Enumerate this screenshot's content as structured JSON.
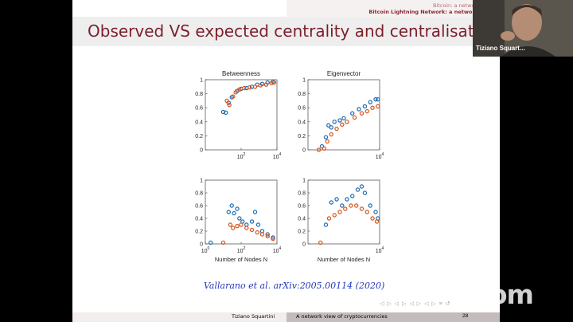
{
  "slide": {
    "nav": {
      "section": "Bitcoin: a network view",
      "subsection": "Bitcoin Lightning Network: a network view"
    },
    "title": "Observed VS expected centrality and centralisation",
    "citation": "Vallarano et al. arXiv:2005.00114 (2020)",
    "footer": {
      "author": "Tiziano Squartini",
      "talk_title": "A network view of cryptocurrencies",
      "page": "28"
    },
    "nav_icons": "◁ ▷ ◁ ▷ ◁ ▷ ◁ ▷ ≡ ↺"
  },
  "video": {
    "participant_name": "Tiziano Squart...",
    "logo_text": "zoom"
  },
  "colors": {
    "observed": "#1f6bb0",
    "expected": "#d95319",
    "title": "#7d1f2a",
    "citation": "#2036b8"
  },
  "chart_data": [
    {
      "type": "scatter",
      "title": "Betweenness",
      "xlabel": "",
      "xscale": "log",
      "xlim": [
        1,
        10000
      ],
      "ylim": [
        0,
        1
      ],
      "yticks": [
        "0",
        "0.2",
        "0.4",
        "0.6",
        "0.8",
        "1"
      ],
      "xticks": [
        "10^2",
        "10^4"
      ],
      "series": [
        {
          "color": "blue",
          "points": [
            [
              10,
              0.54
            ],
            [
              14,
              0.53
            ],
            [
              20,
              0.67
            ],
            [
              30,
              0.75
            ],
            [
              60,
              0.84
            ],
            [
              100,
              0.87
            ],
            [
              200,
              0.88
            ],
            [
              400,
              0.9
            ],
            [
              800,
              0.93
            ],
            [
              1500,
              0.94
            ],
            [
              3000,
              0.96
            ],
            [
              6000,
              0.97
            ]
          ]
        },
        {
          "color": "orange",
          "points": [
            [
              16,
              0.7
            ],
            [
              22,
              0.64
            ],
            [
              35,
              0.76
            ],
            [
              50,
              0.82
            ],
            [
              80,
              0.86
            ],
            [
              150,
              0.88
            ],
            [
              300,
              0.89
            ],
            [
              600,
              0.9
            ],
            [
              1200,
              0.92
            ],
            [
              2500,
              0.93
            ],
            [
              5000,
              0.95
            ],
            [
              7000,
              0.96
            ]
          ]
        }
      ]
    },
    {
      "type": "scatter",
      "title": "Eigenvector",
      "xlabel": "",
      "xscale": "log",
      "xlim": [
        1,
        10000
      ],
      "ylim": [
        0,
        1
      ],
      "yticks": [
        "0",
        "0.2",
        "0.4",
        "0.6",
        "0.8",
        "1"
      ],
      "xticks": [
        "10^4"
      ],
      "series": [
        {
          "color": "blue",
          "points": [
            [
              6,
              0.05
            ],
            [
              10,
              0.18
            ],
            [
              14,
              0.35
            ],
            [
              20,
              0.32
            ],
            [
              30,
              0.4
            ],
            [
              60,
              0.42
            ],
            [
              100,
              0.45
            ],
            [
              300,
              0.52
            ],
            [
              700,
              0.58
            ],
            [
              1500,
              0.62
            ],
            [
              3000,
              0.68
            ],
            [
              6000,
              0.72
            ],
            [
              8000,
              0.72
            ]
          ]
        },
        {
          "color": "orange",
          "points": [
            [
              4,
              0.0
            ],
            [
              8,
              0.02
            ],
            [
              12,
              0.12
            ],
            [
              20,
              0.22
            ],
            [
              40,
              0.3
            ],
            [
              80,
              0.36
            ],
            [
              150,
              0.4
            ],
            [
              400,
              0.46
            ],
            [
              1000,
              0.52
            ],
            [
              2000,
              0.55
            ],
            [
              4000,
              0.6
            ],
            [
              8000,
              0.62
            ]
          ]
        }
      ]
    },
    {
      "type": "scatter",
      "title": "",
      "xlabel": "Number of Nodes N",
      "xscale": "log",
      "xlim": [
        1,
        10000
      ],
      "ylim": [
        0,
        1
      ],
      "yticks": [
        "0",
        "0.2",
        "0.4",
        "0.6",
        "0.8",
        "1"
      ],
      "xticks": [
        "10^0",
        "10^2",
        "10^4"
      ],
      "series": [
        {
          "color": "blue",
          "points": [
            [
              2,
              0.02
            ],
            [
              20,
              0.5
            ],
            [
              30,
              0.6
            ],
            [
              40,
              0.48
            ],
            [
              60,
              0.55
            ],
            [
              80,
              0.4
            ],
            [
              120,
              0.35
            ],
            [
              200,
              0.3
            ],
            [
              400,
              0.35
            ],
            [
              600,
              0.5
            ],
            [
              900,
              0.3
            ],
            [
              1500,
              0.2
            ],
            [
              3000,
              0.15
            ],
            [
              6000,
              0.1
            ]
          ]
        },
        {
          "color": "orange",
          "points": [
            [
              10,
              0.02
            ],
            [
              25,
              0.3
            ],
            [
              35,
              0.25
            ],
            [
              60,
              0.28
            ],
            [
              100,
              0.3
            ],
            [
              200,
              0.25
            ],
            [
              400,
              0.22
            ],
            [
              800,
              0.18
            ],
            [
              1500,
              0.15
            ],
            [
              3000,
              0.12
            ],
            [
              6000,
              0.08
            ]
          ]
        }
      ]
    },
    {
      "type": "scatter",
      "title": "",
      "xlabel": "Number of Nodes N",
      "xscale": "log",
      "xlim": [
        1,
        10000
      ],
      "ylim": [
        0,
        1
      ],
      "yticks": [
        "0",
        "0.2",
        "0.4",
        "0.6",
        "0.8",
        "1"
      ],
      "xticks": [
        "10^4"
      ],
      "series": [
        {
          "color": "blue",
          "points": [
            [
              10,
              0.3
            ],
            [
              20,
              0.65
            ],
            [
              40,
              0.7
            ],
            [
              80,
              0.6
            ],
            [
              150,
              0.7
            ],
            [
              300,
              0.75
            ],
            [
              600,
              0.85
            ],
            [
              1000,
              0.9
            ],
            [
              1500,
              0.8
            ],
            [
              3000,
              0.6
            ],
            [
              6000,
              0.5
            ],
            [
              8000,
              0.4
            ]
          ]
        },
        {
          "color": "orange",
          "points": [
            [
              5,
              0.02
            ],
            [
              15,
              0.4
            ],
            [
              30,
              0.45
            ],
            [
              60,
              0.5
            ],
            [
              120,
              0.55
            ],
            [
              250,
              0.6
            ],
            [
              500,
              0.6
            ],
            [
              1000,
              0.55
            ],
            [
              2000,
              0.5
            ],
            [
              4000,
              0.4
            ],
            [
              7000,
              0.35
            ]
          ]
        }
      ]
    }
  ]
}
